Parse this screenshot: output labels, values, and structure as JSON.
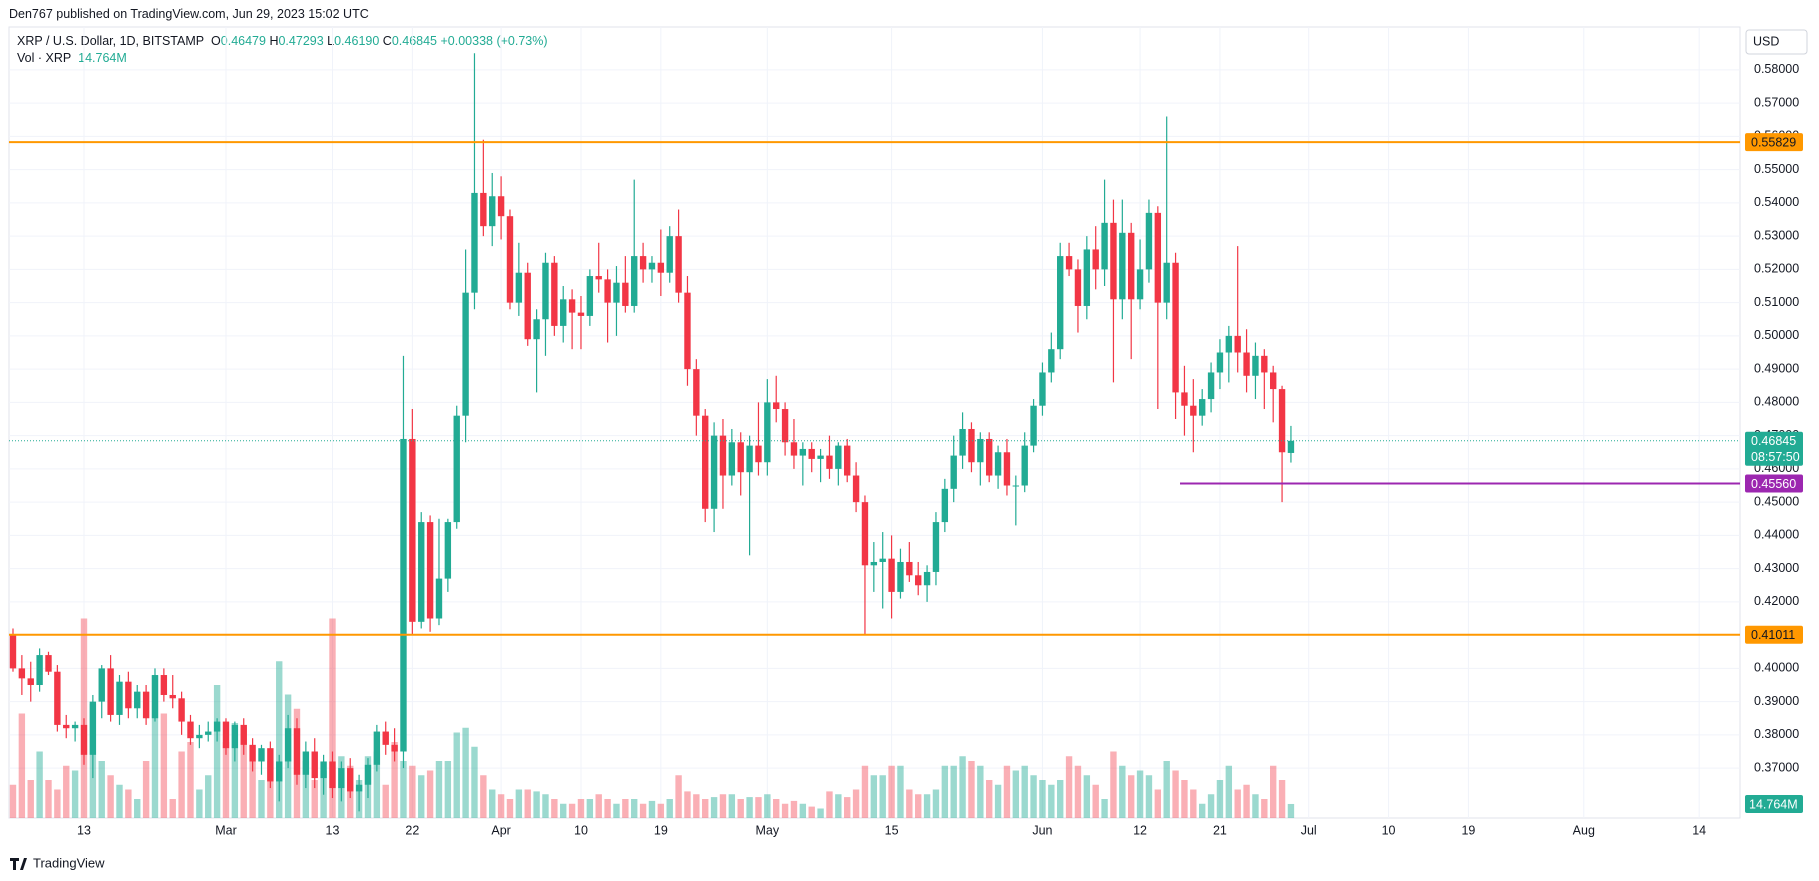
{
  "header": {
    "published": "Den767 published on TradingView.com, Jun 29, 2023 15:02 UTC",
    "currency": "USD",
    "brand": "TradingView"
  },
  "legend": {
    "symbol": "XRP / U.S. Dollar, 1D, BITSTAMP",
    "fields": [
      {
        "key": "O",
        "value": "0.46479"
      },
      {
        "key": "H",
        "value": "0.47293"
      },
      {
        "key": "L",
        "value": "0.46190"
      },
      {
        "key": "C",
        "value": "0.46845"
      }
    ],
    "change": "+0.00338 (+0.73%)",
    "volume_title": "Vol · XRP"
  },
  "chart_data": {
    "type": "candlestick",
    "up_color": "#22ab94",
    "down_color": "#f23645",
    "volume_up_color": "rgba(34,171,148,0.45)",
    "volume_down_color": "rgba(242,54,69,0.4)",
    "grid": true,
    "open": [
      0.41,
      0.4,
      0.397,
      0.395,
      0.404,
      0.399,
      0.383,
      0.382,
      0.383,
      0.374,
      0.39,
      0.4,
      0.386,
      0.396,
      0.388,
      0.393,
      0.385,
      0.398,
      0.392,
      0.391,
      0.384,
      0.379,
      0.38,
      0.381,
      0.384,
      0.376,
      0.383,
      0.377,
      0.372,
      0.376,
      0.366,
      0.372,
      0.382,
      0.368,
      0.375,
      0.367,
      0.372,
      0.364,
      0.37,
      0.363,
      0.365,
      0.371,
      0.381,
      0.377,
      0.375,
      0.469,
      0.414,
      0.444,
      0.415,
      0.427,
      0.444,
      0.476,
      0.513,
      0.543,
      0.533,
      0.542,
      0.536,
      0.51,
      0.519,
      0.499,
      0.505,
      0.522,
      0.503,
      0.511,
      0.507,
      0.506,
      0.518,
      0.517,
      0.51,
      0.516,
      0.509,
      0.524,
      0.52,
      0.522,
      0.519,
      0.53,
      0.513,
      0.49,
      0.476,
      0.448,
      0.47,
      0.458,
      0.468,
      0.459,
      0.467,
      0.462,
      0.48,
      0.478,
      0.468,
      0.464,
      0.466,
      0.463,
      0.464,
      0.46,
      0.467,
      0.458,
      0.45,
      0.431,
      0.432,
      0.433,
      0.423,
      0.432,
      0.428,
      0.425,
      0.429,
      0.444,
      0.454,
      0.464,
      0.472,
      0.462,
      0.469,
      0.458,
      0.465,
      0.455,
      0.455,
      0.467,
      0.479,
      0.489,
      0.496,
      0.524,
      0.52,
      0.509,
      0.526,
      0.52,
      0.534,
      0.511,
      0.531,
      0.511,
      0.52,
      0.537,
      0.51,
      0.522,
      0.483,
      0.479,
      0.476,
      0.481,
      0.489,
      0.495,
      0.5,
      0.495,
      0.488,
      0.494,
      0.489,
      0.484,
      0.46479
    ],
    "high": [
      0.412,
      0.404,
      0.402,
      0.406,
      0.405,
      0.401,
      0.386,
      0.384,
      0.385,
      0.392,
      0.401,
      0.404,
      0.398,
      0.399,
      0.395,
      0.395,
      0.4,
      0.4,
      0.398,
      0.393,
      0.386,
      0.383,
      0.384,
      0.385,
      0.385,
      0.384,
      0.385,
      0.379,
      0.377,
      0.378,
      0.374,
      0.386,
      0.385,
      0.378,
      0.379,
      0.374,
      0.375,
      0.372,
      0.373,
      0.368,
      0.373,
      0.383,
      0.384,
      0.382,
      0.494,
      0.478,
      0.447,
      0.446,
      0.445,
      0.445,
      0.479,
      0.526,
      0.585,
      0.559,
      0.549,
      0.548,
      0.538,
      0.528,
      0.522,
      0.508,
      0.525,
      0.524,
      0.515,
      0.514,
      0.512,
      0.52,
      0.528,
      0.52,
      0.521,
      0.524,
      0.547,
      0.528,
      0.524,
      0.532,
      0.533,
      0.538,
      0.518,
      0.493,
      0.478,
      0.474,
      0.475,
      0.472,
      0.471,
      0.47,
      0.48,
      0.487,
      0.488,
      0.48,
      0.475,
      0.468,
      0.468,
      0.466,
      0.47,
      0.468,
      0.469,
      0.462,
      0.452,
      0.438,
      0.441,
      0.44,
      0.436,
      0.438,
      0.432,
      0.431,
      0.447,
      0.457,
      0.47,
      0.477,
      0.474,
      0.471,
      0.471,
      0.467,
      0.469,
      0.458,
      0.471,
      0.481,
      0.492,
      0.501,
      0.528,
      0.528,
      0.523,
      0.53,
      0.533,
      0.547,
      0.541,
      0.541,
      0.534,
      0.529,
      0.541,
      0.539,
      0.566,
      0.525,
      0.491,
      0.487,
      0.484,
      0.492,
      0.499,
      0.503,
      0.527,
      0.502,
      0.498,
      0.496,
      0.491,
      0.485,
      0.47293
    ],
    "low": [
      0.399,
      0.392,
      0.39,
      0.393,
      0.398,
      0.381,
      0.379,
      0.378,
      0.371,
      0.367,
      0.385,
      0.384,
      0.383,
      0.385,
      0.385,
      0.383,
      0.384,
      0.39,
      0.388,
      0.38,
      0.377,
      0.376,
      0.378,
      0.378,
      0.374,
      0.372,
      0.374,
      0.369,
      0.368,
      0.364,
      0.36,
      0.37,
      0.365,
      0.364,
      0.364,
      0.362,
      0.361,
      0.36,
      0.361,
      0.357,
      0.361,
      0.369,
      0.374,
      0.372,
      0.37,
      0.41,
      0.412,
      0.411,
      0.413,
      0.423,
      0.442,
      0.468,
      0.508,
      0.53,
      0.527,
      0.529,
      0.508,
      0.506,
      0.497,
      0.483,
      0.494,
      0.5,
      0.498,
      0.496,
      0.496,
      0.503,
      0.513,
      0.498,
      0.5,
      0.507,
      0.507,
      0.516,
      0.516,
      0.512,
      0.516,
      0.51,
      0.485,
      0.47,
      0.444,
      0.441,
      0.448,
      0.455,
      0.452,
      0.434,
      0.458,
      0.458,
      0.474,
      0.464,
      0.46,
      0.455,
      0.459,
      0.456,
      0.457,
      0.455,
      0.456,
      0.447,
      0.41,
      0.423,
      0.418,
      0.415,
      0.421,
      0.426,
      0.422,
      0.42,
      0.425,
      0.441,
      0.45,
      0.46,
      0.459,
      0.455,
      0.456,
      0.454,
      0.452,
      0.443,
      0.453,
      0.465,
      0.476,
      0.486,
      0.493,
      0.518,
      0.501,
      0.505,
      0.514,
      0.515,
      0.486,
      0.505,
      0.493,
      0.508,
      0.516,
      0.478,
      0.505,
      0.475,
      0.47,
      0.465,
      0.473,
      0.477,
      0.484,
      0.486,
      0.489,
      0.483,
      0.481,
      0.478,
      0.474,
      0.45,
      0.4619
    ],
    "close": [
      0.4,
      0.397,
      0.395,
      0.404,
      0.399,
      0.383,
      0.382,
      0.383,
      0.374,
      0.39,
      0.4,
      0.386,
      0.396,
      0.388,
      0.393,
      0.385,
      0.398,
      0.392,
      0.391,
      0.384,
      0.379,
      0.38,
      0.381,
      0.384,
      0.376,
      0.383,
      0.377,
      0.372,
      0.376,
      0.366,
      0.372,
      0.382,
      0.368,
      0.375,
      0.367,
      0.372,
      0.364,
      0.37,
      0.363,
      0.365,
      0.371,
      0.381,
      0.377,
      0.375,
      0.469,
      0.414,
      0.444,
      0.415,
      0.427,
      0.444,
      0.476,
      0.513,
      0.543,
      0.533,
      0.542,
      0.536,
      0.51,
      0.519,
      0.499,
      0.505,
      0.522,
      0.503,
      0.511,
      0.507,
      0.506,
      0.518,
      0.517,
      0.51,
      0.516,
      0.509,
      0.524,
      0.52,
      0.522,
      0.519,
      0.53,
      0.513,
      0.49,
      0.476,
      0.448,
      0.47,
      0.458,
      0.468,
      0.459,
      0.467,
      0.462,
      0.48,
      0.478,
      0.468,
      0.464,
      0.466,
      0.463,
      0.464,
      0.46,
      0.467,
      0.458,
      0.45,
      0.431,
      0.432,
      0.433,
      0.423,
      0.432,
      0.428,
      0.425,
      0.429,
      0.444,
      0.454,
      0.464,
      0.472,
      0.462,
      0.469,
      0.458,
      0.465,
      0.455,
      0.455,
      0.467,
      0.479,
      0.489,
      0.496,
      0.524,
      0.52,
      0.509,
      0.526,
      0.52,
      0.534,
      0.511,
      0.531,
      0.511,
      0.52,
      0.537,
      0.51,
      0.522,
      0.483,
      0.479,
      0.476,
      0.481,
      0.489,
      0.495,
      0.5,
      0.495,
      0.488,
      0.494,
      0.489,
      0.484,
      0.465,
      0.46845
    ],
    "volume": [
      35000000,
      110000000,
      40000000,
      70000000,
      40000000,
      30000000,
      55000000,
      50000000,
      210000000,
      120000000,
      60000000,
      45000000,
      35000000,
      30000000,
      20000000,
      60000000,
      150000000,
      110000000,
      20000000,
      70000000,
      80000000,
      30000000,
      45000000,
      140000000,
      80000000,
      100000000,
      95000000,
      60000000,
      40000000,
      60000000,
      165000000,
      130000000,
      115000000,
      60000000,
      40000000,
      50000000,
      210000000,
      65000000,
      55000000,
      40000000,
      65000000,
      70000000,
      35000000,
      80000000,
      60000000,
      55000000,
      45000000,
      50000000,
      60000000,
      60000000,
      90000000,
      95000000,
      75000000,
      45000000,
      30000000,
      25000000,
      20000000,
      30000000,
      30000000,
      28000000,
      25000000,
      20000000,
      15000000,
      15000000,
      20000000,
      20000000,
      25000000,
      20000000,
      15000000,
      20000000,
      20000000,
      15000000,
      18000000,
      15000000,
      20000000,
      45000000,
      28000000,
      25000000,
      20000000,
      22000000,
      25000000,
      25000000,
      20000000,
      22000000,
      22000000,
      25000000,
      20000000,
      15000000,
      18000000,
      15000000,
      12000000,
      10000000,
      28000000,
      25000000,
      22000000,
      30000000,
      55000000,
      45000000,
      45000000,
      55000000,
      55000000,
      30000000,
      25000000,
      25000000,
      30000000,
      55000000,
      55000000,
      65000000,
      60000000,
      55000000,
      40000000,
      35000000,
      55000000,
      50000000,
      55000000,
      45000000,
      40000000,
      35000000,
      40000000,
      65000000,
      55000000,
      45000000,
      35000000,
      20000000,
      70000000,
      55000000,
      45000000,
      50000000,
      45000000,
      30000000,
      60000000,
      50000000,
      40000000,
      30000000,
      15000000,
      25000000,
      40000000,
      55000000,
      30000000,
      35000000,
      25000000,
      20000000,
      55000000,
      40000000,
      14764000
    ],
    "volume_label": "14.764M",
    "volume_color": "#22ab94",
    "xlim": [
      -0.45,
      194.6
    ],
    "xticks": [
      {
        "value": 8,
        "label": "13"
      },
      {
        "value": 24,
        "label": "Mar"
      },
      {
        "value": 36,
        "label": "13"
      },
      {
        "value": 45,
        "label": "22"
      },
      {
        "value": 55,
        "label": "Apr"
      },
      {
        "value": 64,
        "label": "10"
      },
      {
        "value": 73,
        "label": "19"
      },
      {
        "value": 85,
        "label": "May"
      },
      {
        "value": 99,
        "label": "15"
      },
      {
        "value": 116,
        "label": "Jun"
      },
      {
        "value": 127,
        "label": "12"
      },
      {
        "value": 136,
        "label": "21"
      },
      {
        "value": 146,
        "label": "Jul"
      },
      {
        "value": 155,
        "label": "10"
      },
      {
        "value": 164,
        "label": "19"
      },
      {
        "value": 177,
        "label": "Aug"
      },
      {
        "value": 190,
        "label": "14"
      }
    ],
    "ylim": [
      0.355,
      0.5929
    ],
    "yticks": [
      {
        "value": 0.37,
        "label": "0.37000"
      },
      {
        "value": 0.38,
        "label": "0.38000"
      },
      {
        "value": 0.39,
        "label": "0.39000"
      },
      {
        "value": 0.4,
        "label": "0.40000"
      },
      {
        "value": 0.41,
        "label": "0.41000"
      },
      {
        "value": 0.42,
        "label": "0.42000"
      },
      {
        "value": 0.43,
        "label": "0.43000"
      },
      {
        "value": 0.44,
        "label": "0.44000"
      },
      {
        "value": 0.45,
        "label": "0.45000"
      },
      {
        "value": 0.46,
        "label": "0.46000"
      },
      {
        "value": 0.47,
        "label": "0.47000"
      },
      {
        "value": 0.48,
        "label": "0.48000"
      },
      {
        "value": 0.49,
        "label": "0.49000"
      },
      {
        "value": 0.5,
        "label": "0.50000"
      },
      {
        "value": 0.51,
        "label": "0.51000"
      },
      {
        "value": 0.52,
        "label": "0.52000"
      },
      {
        "value": 0.53,
        "label": "0.53000"
      },
      {
        "value": 0.54,
        "label": "0.54000"
      },
      {
        "value": 0.55,
        "label": "0.55000"
      },
      {
        "value": 0.56,
        "label": "0.56000"
      },
      {
        "value": 0.57,
        "label": "0.57000"
      },
      {
        "value": 0.58,
        "label": "0.58000"
      }
    ],
    "vlim": [
      0,
      220000000
    ],
    "levels": [
      {
        "value": 0.55829,
        "label": "0.55829",
        "color": "#ff9800",
        "text_color": "#131722"
      },
      {
        "value": 0.41011,
        "label": "0.41011",
        "color": "#ff9800",
        "text_color": "#131722"
      },
      {
        "value": 0.4556,
        "label": "0.45560",
        "color": "#9c27b0",
        "text_color": "#ffffff",
        "start_index": 131.5
      }
    ],
    "last_price": {
      "value": 0.46845,
      "label": "0.46845",
      "countdown": "08:57:50",
      "color": "#22ab94"
    }
  }
}
